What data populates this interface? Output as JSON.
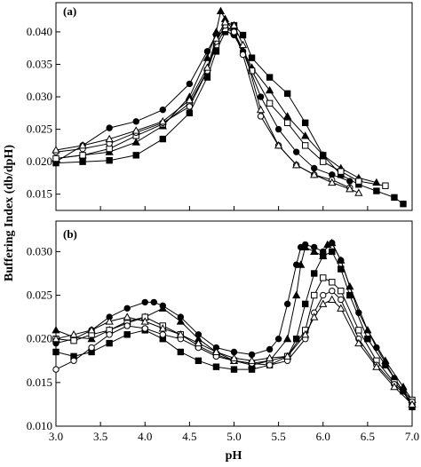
{
  "chart_data": [
    {
      "type": "line",
      "panel_label": "(a)",
      "xlabel": "",
      "ylabel": "",
      "xlim": [
        3.0,
        7.0
      ],
      "ylim": [
        0.0125,
        0.0445
      ],
      "yticks": [
        "0.015",
        "0.020",
        "0.025",
        "0.030",
        "0.035",
        "0.040"
      ],
      "grid": false,
      "series": [
        {
          "marker": "filled-square",
          "x": [
            3.0,
            3.3,
            3.6,
            3.9,
            4.2,
            4.5,
            4.7,
            4.8,
            4.9,
            5.0,
            5.1,
            5.2,
            5.4,
            5.6,
            5.8,
            6.0,
            6.2,
            6.4,
            6.6,
            6.8,
            6.9
          ],
          "y": [
            0.0198,
            0.02,
            0.0202,
            0.021,
            0.0235,
            0.0275,
            0.033,
            0.037,
            0.04,
            0.041,
            0.0395,
            0.036,
            0.033,
            0.0305,
            0.026,
            0.021,
            0.018,
            0.0165,
            0.0155,
            0.0145,
            0.0135
          ]
        },
        {
          "marker": "filled-triangle",
          "x": [
            3.0,
            3.3,
            3.6,
            3.9,
            4.2,
            4.5,
            4.7,
            4.8,
            4.85,
            4.9,
            5.0,
            5.2,
            5.4,
            5.6,
            5.8,
            6.0,
            6.2,
            6.4,
            6.6
          ],
          "y": [
            0.0205,
            0.021,
            0.0215,
            0.023,
            0.0255,
            0.03,
            0.036,
            0.04,
            0.0432,
            0.042,
            0.04,
            0.0345,
            0.031,
            0.027,
            0.024,
            0.021,
            0.019,
            0.0175,
            0.0168
          ]
        },
        {
          "marker": "filled-circle",
          "x": [
            3.0,
            3.3,
            3.6,
            3.9,
            4.2,
            4.5,
            4.7,
            4.8,
            4.9,
            5.0,
            5.1,
            5.3,
            5.5,
            5.7,
            5.9,
            6.1,
            6.3
          ],
          "y": [
            0.02,
            0.0225,
            0.0252,
            0.0262,
            0.028,
            0.032,
            0.037,
            0.0395,
            0.0402,
            0.0395,
            0.037,
            0.03,
            0.025,
            0.0215,
            0.019,
            0.018,
            0.017
          ]
        },
        {
          "marker": "open-square",
          "x": [
            3.0,
            3.3,
            3.6,
            3.9,
            4.2,
            4.5,
            4.7,
            4.8,
            4.9,
            5.0,
            5.2,
            5.4,
            5.6,
            5.8,
            6.0,
            6.2,
            6.4,
            6.7
          ],
          "y": [
            0.0205,
            0.021,
            0.022,
            0.024,
            0.0258,
            0.029,
            0.034,
            0.038,
            0.0405,
            0.04,
            0.034,
            0.029,
            0.026,
            0.0225,
            0.02,
            0.0185,
            0.017,
            0.0163
          ]
        },
        {
          "marker": "open-circle",
          "x": [
            3.0,
            3.3,
            3.6,
            3.9,
            4.2,
            4.5,
            4.7,
            4.8,
            4.9,
            5.0,
            5.1,
            5.3,
            5.5,
            5.7,
            5.9,
            6.1,
            6.3
          ],
          "y": [
            0.0215,
            0.022,
            0.0228,
            0.0245,
            0.026,
            0.0285,
            0.034,
            0.0385,
            0.041,
            0.04,
            0.0365,
            0.027,
            0.0225,
            0.0195,
            0.018,
            0.0172,
            0.016
          ]
        },
        {
          "marker": "open-triangle",
          "x": [
            3.0,
            3.3,
            3.6,
            3.9,
            4.2,
            4.5,
            4.7,
            4.8,
            4.9,
            5.0,
            5.1,
            5.3,
            5.5,
            5.7,
            5.9,
            6.1,
            6.3,
            6.4
          ],
          "y": [
            0.0218,
            0.0225,
            0.0235,
            0.0248,
            0.0262,
            0.0295,
            0.0345,
            0.039,
            0.0415,
            0.041,
            0.038,
            0.028,
            0.0225,
            0.0195,
            0.018,
            0.0168,
            0.0158,
            0.0152
          ]
        }
      ]
    },
    {
      "type": "line",
      "panel_label": "(b)",
      "xlabel": "pH",
      "ylabel": "",
      "xlim": [
        3.0,
        7.0
      ],
      "ylim": [
        0.01,
        0.0335
      ],
      "xticks": [
        "3.0",
        "3.5",
        "4.0",
        "4.5",
        "5.0",
        "5.5",
        "6.0",
        "6.5",
        "7.0"
      ],
      "yticks": [
        "0.010",
        "0.015",
        "0.020",
        "0.025",
        "0.030"
      ],
      "grid": false,
      "series": [
        {
          "marker": "filled-square",
          "x": [
            3.0,
            3.2,
            3.4,
            3.6,
            3.8,
            4.0,
            4.2,
            4.4,
            4.6,
            4.8,
            5.0,
            5.2,
            5.4,
            5.6,
            5.7,
            5.8,
            5.9,
            6.0,
            6.1,
            6.2,
            6.3,
            6.5,
            6.7,
            6.9,
            7.0
          ],
          "y": [
            0.0185,
            0.018,
            0.0185,
            0.0195,
            0.0205,
            0.021,
            0.02,
            0.0185,
            0.0175,
            0.0168,
            0.0165,
            0.0165,
            0.017,
            0.018,
            0.02,
            0.024,
            0.0275,
            0.0295,
            0.03,
            0.028,
            0.025,
            0.02,
            0.017,
            0.014,
            0.0122
          ]
        },
        {
          "marker": "filled-triangle",
          "x": [
            3.0,
            3.2,
            3.4,
            3.6,
            3.8,
            4.0,
            4.2,
            4.4,
            4.6,
            4.8,
            5.0,
            5.2,
            5.4,
            5.6,
            5.7,
            5.75,
            5.8,
            5.9,
            6.0,
            6.05,
            6.1,
            6.2,
            6.3,
            6.5,
            6.7,
            6.9,
            7.0
          ],
          "y": [
            0.021,
            0.0202,
            0.02,
            0.021,
            0.022,
            0.0225,
            0.0235,
            0.022,
            0.02,
            0.0185,
            0.0175,
            0.017,
            0.0175,
            0.02,
            0.025,
            0.0285,
            0.0305,
            0.03,
            0.0295,
            0.0308,
            0.031,
            0.029,
            0.026,
            0.021,
            0.0175,
            0.0145,
            0.013
          ]
        },
        {
          "marker": "filled-circle",
          "x": [
            3.0,
            3.2,
            3.4,
            3.6,
            3.8,
            4.0,
            4.1,
            4.2,
            4.4,
            4.6,
            4.8,
            5.0,
            5.2,
            5.4,
            5.5,
            5.6,
            5.7,
            5.75,
            5.8,
            5.9,
            6.0,
            6.1,
            6.2,
            6.4,
            6.6,
            6.8,
            7.0
          ],
          "y": [
            0.0195,
            0.02,
            0.021,
            0.0225,
            0.0235,
            0.0242,
            0.0242,
            0.0238,
            0.0225,
            0.0205,
            0.019,
            0.0185,
            0.0182,
            0.0188,
            0.02,
            0.024,
            0.0285,
            0.0305,
            0.0308,
            0.0305,
            0.03,
            0.031,
            0.029,
            0.023,
            0.019,
            0.0155,
            0.0125
          ]
        },
        {
          "marker": "open-square",
          "x": [
            3.0,
            3.2,
            3.4,
            3.6,
            3.8,
            4.0,
            4.2,
            4.4,
            4.6,
            4.8,
            5.0,
            5.2,
            5.4,
            5.6,
            5.8,
            5.9,
            6.0,
            6.1,
            6.2,
            6.4,
            6.6,
            6.8,
            7.0
          ],
          "y": [
            0.02,
            0.0198,
            0.0205,
            0.021,
            0.0218,
            0.0225,
            0.0215,
            0.0205,
            0.0192,
            0.0182,
            0.0175,
            0.0172,
            0.0175,
            0.018,
            0.021,
            0.025,
            0.027,
            0.0265,
            0.0255,
            0.021,
            0.0175,
            0.015,
            0.013
          ]
        },
        {
          "marker": "open-circle",
          "x": [
            3.0,
            3.2,
            3.4,
            3.6,
            3.8,
            4.0,
            4.2,
            4.4,
            4.6,
            4.8,
            5.0,
            5.2,
            5.4,
            5.6,
            5.8,
            5.9,
            6.0,
            6.1,
            6.2,
            6.4,
            6.6,
            6.8,
            7.0
          ],
          "y": [
            0.0165,
            0.0175,
            0.019,
            0.0205,
            0.0215,
            0.0212,
            0.0205,
            0.02,
            0.019,
            0.018,
            0.0175,
            0.0172,
            0.017,
            0.0175,
            0.02,
            0.023,
            0.025,
            0.0255,
            0.0245,
            0.02,
            0.017,
            0.0148,
            0.0128
          ]
        },
        {
          "marker": "open-triangle",
          "x": [
            3.0,
            3.2,
            3.4,
            3.6,
            3.8,
            4.0,
            4.2,
            4.4,
            4.6,
            4.8,
            5.0,
            5.2,
            5.4,
            5.6,
            5.8,
            5.9,
            6.0,
            6.1,
            6.2,
            6.4,
            6.6,
            6.8,
            7.0
          ],
          "y": [
            0.02,
            0.0205,
            0.021,
            0.022,
            0.0225,
            0.022,
            0.0212,
            0.0205,
            0.0195,
            0.0185,
            0.0178,
            0.0175,
            0.0178,
            0.018,
            0.0205,
            0.0225,
            0.024,
            0.0245,
            0.0235,
            0.0195,
            0.0168,
            0.0145,
            0.0125
          ]
        }
      ]
    }
  ],
  "figure": {
    "shared_ylabel": "Buffering Index (db/dpH)",
    "line_color": "#000000",
    "background": "#ffffff"
  }
}
